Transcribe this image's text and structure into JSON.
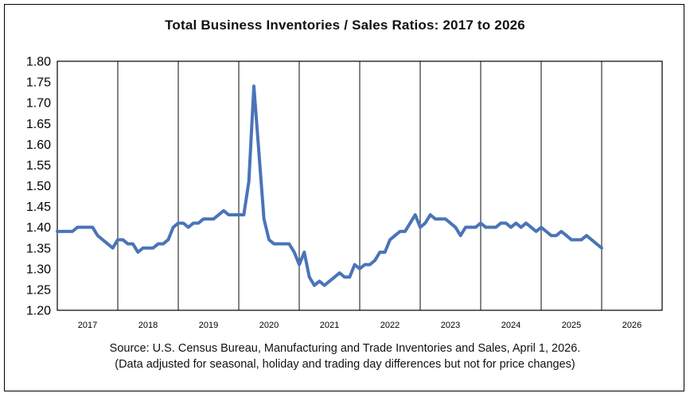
{
  "chart_data": {
    "type": "line",
    "title": "Total Business Inventories / Sales Ratios: 2017 to 2026",
    "xlabel": "",
    "ylabel": "",
    "ylim": [
      1.2,
      1.8
    ],
    "yticks": [
      "1.80",
      "1.75",
      "1.70",
      "1.65",
      "1.60",
      "1.55",
      "1.50",
      "1.45",
      "1.40",
      "1.35",
      "1.30",
      "1.25",
      "1.20"
    ],
    "year_labels": [
      "2017",
      "2018",
      "2019",
      "2020",
      "2021",
      "2022",
      "2023",
      "2024",
      "2025",
      "2026"
    ],
    "x_start": "2017-01",
    "months_total": 120,
    "grid": "vertical year separators",
    "legend": "none",
    "line_color": "#4a74b8",
    "series": [
      {
        "values": [
          1.39,
          1.39,
          1.39,
          1.39,
          1.4,
          1.4,
          1.4,
          1.4,
          1.38,
          1.37,
          1.36,
          1.35,
          1.37,
          1.37,
          1.36,
          1.36,
          1.34,
          1.35,
          1.35,
          1.35,
          1.36,
          1.36,
          1.37,
          1.4,
          1.41,
          1.41,
          1.4,
          1.41,
          1.41,
          1.42,
          1.42,
          1.42,
          1.43,
          1.44,
          1.43,
          1.43,
          1.43,
          1.43,
          1.51,
          1.74,
          1.58,
          1.42,
          1.37,
          1.36,
          1.36,
          1.36,
          1.36,
          1.34,
          1.31,
          1.34,
          1.28,
          1.26,
          1.27,
          1.26,
          1.27,
          1.28,
          1.29,
          1.28,
          1.28,
          1.31,
          1.3,
          1.31,
          1.31,
          1.32,
          1.34,
          1.34,
          1.37,
          1.38,
          1.39,
          1.39,
          1.41,
          1.43,
          1.4,
          1.41,
          1.43,
          1.42,
          1.42,
          1.42,
          1.41,
          1.4,
          1.38,
          1.4,
          1.4,
          1.4,
          1.41,
          1.4,
          1.4,
          1.4,
          1.41,
          1.41,
          1.4,
          1.41,
          1.4,
          1.41,
          1.4,
          1.39,
          1.4,
          1.39,
          1.38,
          1.38,
          1.39,
          1.38,
          1.37,
          1.37,
          1.37,
          1.38,
          1.37,
          1.36,
          1.35
        ]
      }
    ]
  },
  "source": "Source: U.S. Census Bureau, Manufacturing and Trade Inventories and Sales, April 1, 2026.",
  "note": "(Data adjusted for seasonal, holiday and trading day differences but not for price changes)"
}
